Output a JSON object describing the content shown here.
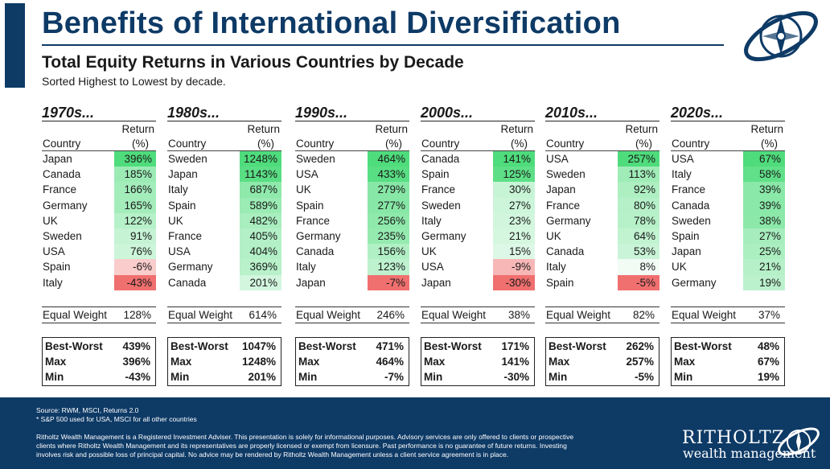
{
  "header": {
    "title": "Benefits of International Diversification",
    "subtitle": "Total Equity Returns in Various Countries by Decade",
    "note": "Sorted Highest to Lowest by decade."
  },
  "columns": {
    "country": "Country",
    "return_line1": "Return",
    "return_line2": "(%)"
  },
  "labels": {
    "equal_weight": "Equal Weight",
    "best_worst": "Best-Worst",
    "max": "Max",
    "min": "Min"
  },
  "colors": {
    "accent": "#0e3a66",
    "positive_max": "#4fdc7c",
    "negative_max": "#f06f6f"
  },
  "chart_data": {
    "type": "table",
    "title": "Total Equity Returns in Various Countries by Decade",
    "unit": "%",
    "decades": [
      {
        "label": "1970s...",
        "rows": [
          {
            "country": "Japan",
            "value": 396,
            "text": "396%"
          },
          {
            "country": "Canada",
            "value": 185,
            "text": "185%"
          },
          {
            "country": "France",
            "value": 166,
            "text": "166%"
          },
          {
            "country": "Germany",
            "value": 165,
            "text": "165%"
          },
          {
            "country": "UK",
            "value": 122,
            "text": "122%"
          },
          {
            "country": "Sweden",
            "value": 91,
            "text": "91%"
          },
          {
            "country": "USA",
            "value": 76,
            "text": "76%"
          },
          {
            "country": "Spain",
            "value": -6,
            "text": "-6%"
          },
          {
            "country": "Italy",
            "value": -43,
            "text": "-43%"
          }
        ],
        "equal_weight": "128%",
        "best_worst": "439%",
        "max": "396%",
        "min": "-43%"
      },
      {
        "label": "1980s...",
        "rows": [
          {
            "country": "Sweden",
            "value": 1248,
            "text": "1248%"
          },
          {
            "country": "Japan",
            "value": 1143,
            "text": "1143%"
          },
          {
            "country": "Italy",
            "value": 687,
            "text": "687%"
          },
          {
            "country": "Spain",
            "value": 589,
            "text": "589%"
          },
          {
            "country": "UK",
            "value": 482,
            "text": "482%"
          },
          {
            "country": "France",
            "value": 405,
            "text": "405%"
          },
          {
            "country": "USA",
            "value": 404,
            "text": "404%"
          },
          {
            "country": "Germany",
            "value": 369,
            "text": "369%"
          },
          {
            "country": "Canada",
            "value": 201,
            "text": "201%"
          }
        ],
        "equal_weight": "614%",
        "best_worst": "1047%",
        "max": "1248%",
        "min": "201%"
      },
      {
        "label": "1990s...",
        "rows": [
          {
            "country": "Sweden",
            "value": 464,
            "text": "464%"
          },
          {
            "country": "USA",
            "value": 433,
            "text": "433%"
          },
          {
            "country": "UK",
            "value": 279,
            "text": "279%"
          },
          {
            "country": "Spain",
            "value": 277,
            "text": "277%"
          },
          {
            "country": "France",
            "value": 256,
            "text": "256%"
          },
          {
            "country": "Germany",
            "value": 235,
            "text": "235%"
          },
          {
            "country": "Canada",
            "value": 156,
            "text": "156%"
          },
          {
            "country": "Italy",
            "value": 123,
            "text": "123%"
          },
          {
            "country": "Japan",
            "value": -7,
            "text": "-7%"
          }
        ],
        "equal_weight": "246%",
        "best_worst": "471%",
        "max": "464%",
        "min": "-7%"
      },
      {
        "label": "2000s...",
        "rows": [
          {
            "country": "Canada",
            "value": 141,
            "text": "141%"
          },
          {
            "country": "Spain",
            "value": 125,
            "text": "125%"
          },
          {
            "country": "France",
            "value": 30,
            "text": "30%"
          },
          {
            "country": "Sweden",
            "value": 27,
            "text": "27%"
          },
          {
            "country": "Italy",
            "value": 23,
            "text": "23%"
          },
          {
            "country": "Germany",
            "value": 21,
            "text": "21%"
          },
          {
            "country": "UK",
            "value": 15,
            "text": "15%"
          },
          {
            "country": "USA",
            "value": -9,
            "text": "-9%"
          },
          {
            "country": "Japan",
            "value": -30,
            "text": "-30%"
          }
        ],
        "equal_weight": "38%",
        "best_worst": "171%",
        "max": "141%",
        "min": "-30%"
      },
      {
        "label": "2010s...",
        "rows": [
          {
            "country": "USA",
            "value": 257,
            "text": "257%"
          },
          {
            "country": "Sweden",
            "value": 113,
            "text": "113%"
          },
          {
            "country": "Japan",
            "value": 92,
            "text": "92%"
          },
          {
            "country": "France",
            "value": 80,
            "text": "80%"
          },
          {
            "country": "Germany",
            "value": 78,
            "text": "78%"
          },
          {
            "country": "UK",
            "value": 64,
            "text": "64%"
          },
          {
            "country": "Canada",
            "value": 53,
            "text": "53%"
          },
          {
            "country": "Italy",
            "value": 8,
            "text": "8%"
          },
          {
            "country": "Spain",
            "value": -5,
            "text": "-5%"
          }
        ],
        "equal_weight": "82%",
        "best_worst": "262%",
        "max": "257%",
        "min": "-5%"
      },
      {
        "label": "2020s...",
        "rows": [
          {
            "country": "USA",
            "value": 67,
            "text": "67%"
          },
          {
            "country": "Italy",
            "value": 58,
            "text": "58%"
          },
          {
            "country": "France",
            "value": 39,
            "text": "39%"
          },
          {
            "country": "Canada",
            "value": 39,
            "text": "39%"
          },
          {
            "country": "Sweden",
            "value": 38,
            "text": "38%"
          },
          {
            "country": "Spain",
            "value": 27,
            "text": "27%"
          },
          {
            "country": "Japan",
            "value": 25,
            "text": "25%"
          },
          {
            "country": "UK",
            "value": 21,
            "text": "21%"
          },
          {
            "country": "Germany",
            "value": 19,
            "text": "19%"
          }
        ],
        "equal_weight": "37%",
        "best_worst": "48%",
        "max": "67%",
        "min": "19%"
      }
    ]
  },
  "footer": {
    "source": "Source: RWM, MSCI, Returns 2.0",
    "footnote": "* S&P 500 used for USA, MSCI for all other countries",
    "disclaimer": "Ritholtz Wealth Management is a Registered Investment Adviser. This presentation is solely for informational purposes. Advisory services are only offered to clients or prospective clients where Ritholtz Wealth Management and its representatives are properly licensed or exempt from licensure. Past performance is no guarantee of future returns. Investing involves risk and possible loss of principal capital. No advice may be rendered by Ritholtz Wealth Management unless a client service agreement is in place.",
    "brand_line1": "RITHOLTZ",
    "brand_line2": "wealth management"
  }
}
